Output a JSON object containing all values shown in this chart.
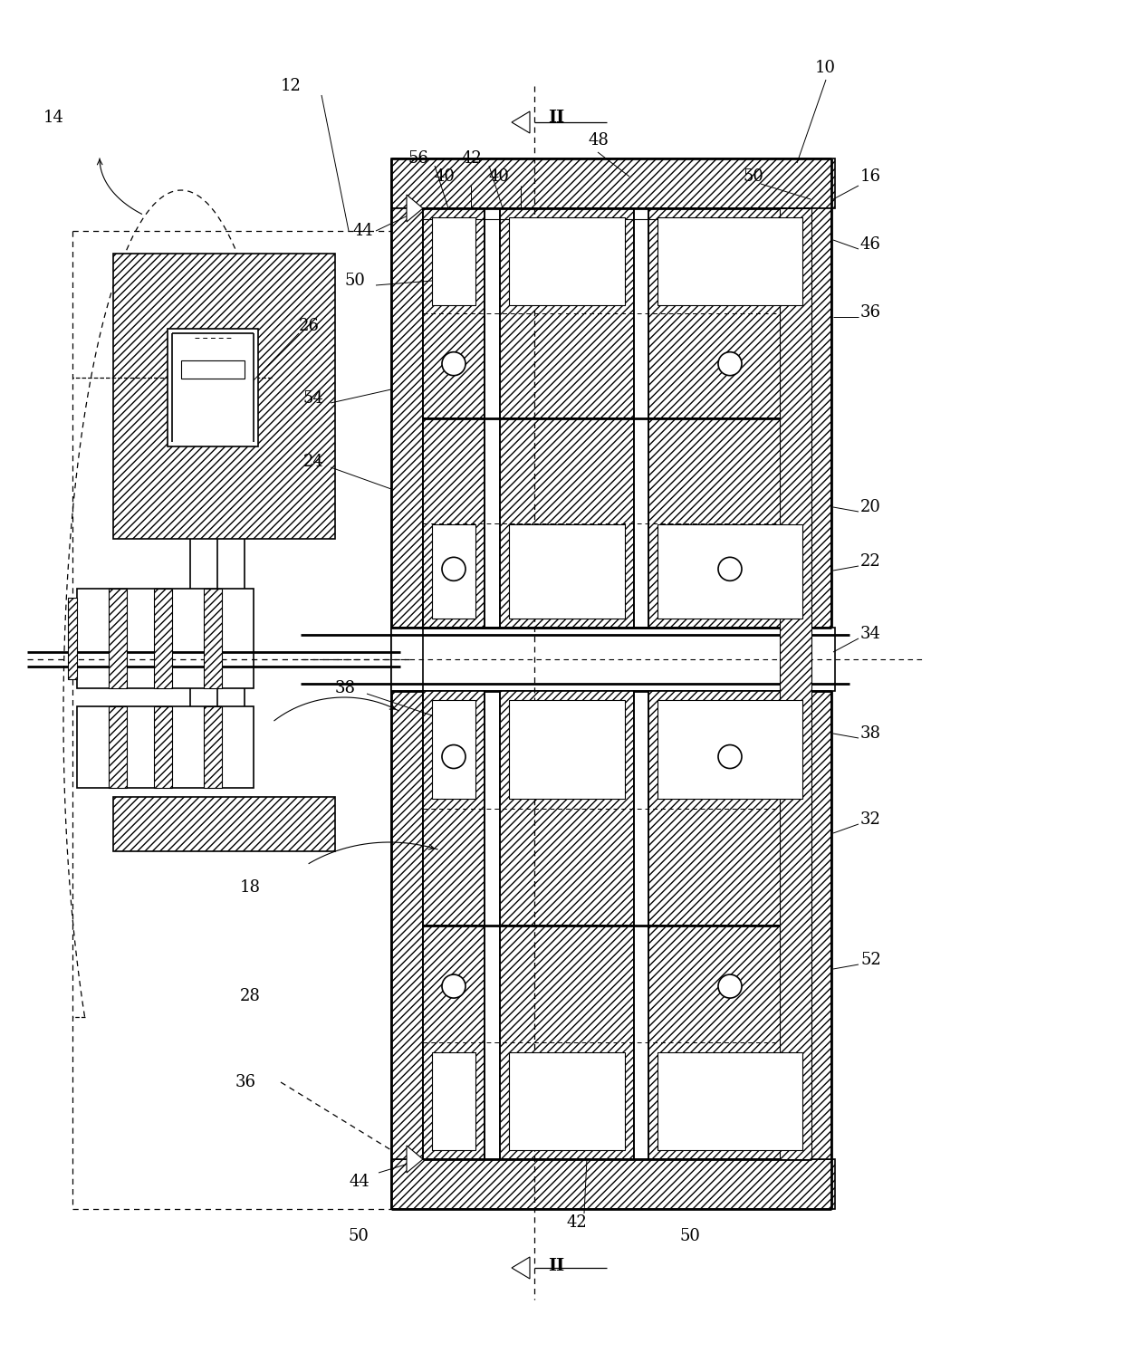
{
  "bg_color": "#ffffff",
  "fig_width": 12.4,
  "fig_height": 15.15,
  "dpi": 100
}
